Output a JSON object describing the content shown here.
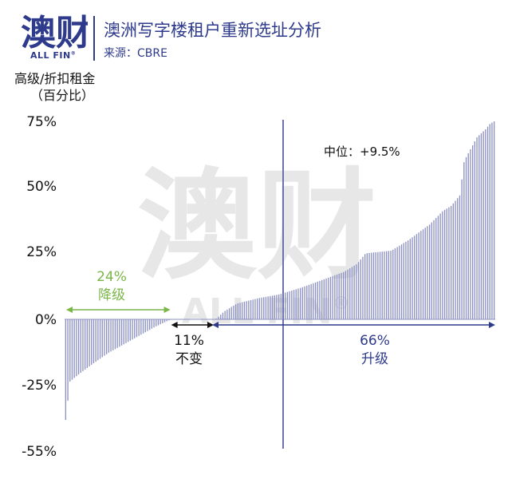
{
  "header": {
    "logo_text": "ALL FIN",
    "logo_reg": "®",
    "title": "澳洲写字楼租户重新选址分析",
    "source": "来源：CBRE"
  },
  "watermark": {
    "text": "ALL FIN",
    "reg": "®"
  },
  "chart_data": {
    "type": "bar",
    "ylabel": "高级/折扣租金（百分比）",
    "ylabel_line1": "高级/折扣租金",
    "ylabel_line2": "（百分比）",
    "yticks": [
      75,
      50,
      25,
      0,
      -25,
      -55
    ],
    "ytick_labels": [
      "75%",
      "50%",
      "25%",
      "0%",
      "-25%",
      "-55%"
    ],
    "ylim": [
      -55,
      75
    ],
    "grid": false,
    "bar_count": 200,
    "segments": [
      {
        "pct_label": "24%",
        "label": "降级",
        "share": 0.24,
        "color": "#7ab648"
      },
      {
        "pct_label": "11%",
        "label": "不变",
        "share": 0.11,
        "color": "#111111"
      },
      {
        "pct_label": "66%",
        "label": "升级",
        "share": 0.66,
        "color": "#2e3a8c"
      }
    ],
    "median_label": "中位：+9.5%",
    "median_value": 9.5,
    "bar_color": "#8d91c2",
    "curve_points": [
      [
        0,
        -42
      ],
      [
        0.01,
        -26
      ],
      [
        0.03,
        -23
      ],
      [
        0.06,
        -19
      ],
      [
        0.1,
        -14
      ],
      [
        0.14,
        -10
      ],
      [
        0.18,
        -6
      ],
      [
        0.21,
        -3
      ],
      [
        0.24,
        -0.5
      ],
      [
        0.25,
        0
      ],
      [
        0.35,
        0
      ],
      [
        0.37,
        3
      ],
      [
        0.4,
        6
      ],
      [
        0.45,
        8
      ],
      [
        0.5,
        9.5
      ],
      [
        0.55,
        12
      ],
      [
        0.6,
        15
      ],
      [
        0.65,
        18
      ],
      [
        0.68,
        21
      ],
      [
        0.7,
        25
      ],
      [
        0.76,
        26
      ],
      [
        0.8,
        30
      ],
      [
        0.85,
        36
      ],
      [
        0.88,
        41
      ],
      [
        0.9,
        43
      ],
      [
        0.92,
        47
      ],
      [
        0.93,
        60
      ],
      [
        0.96,
        69
      ],
      [
        0.98,
        72
      ],
      [
        0.99,
        74
      ],
      [
        1,
        75
      ]
    ]
  }
}
